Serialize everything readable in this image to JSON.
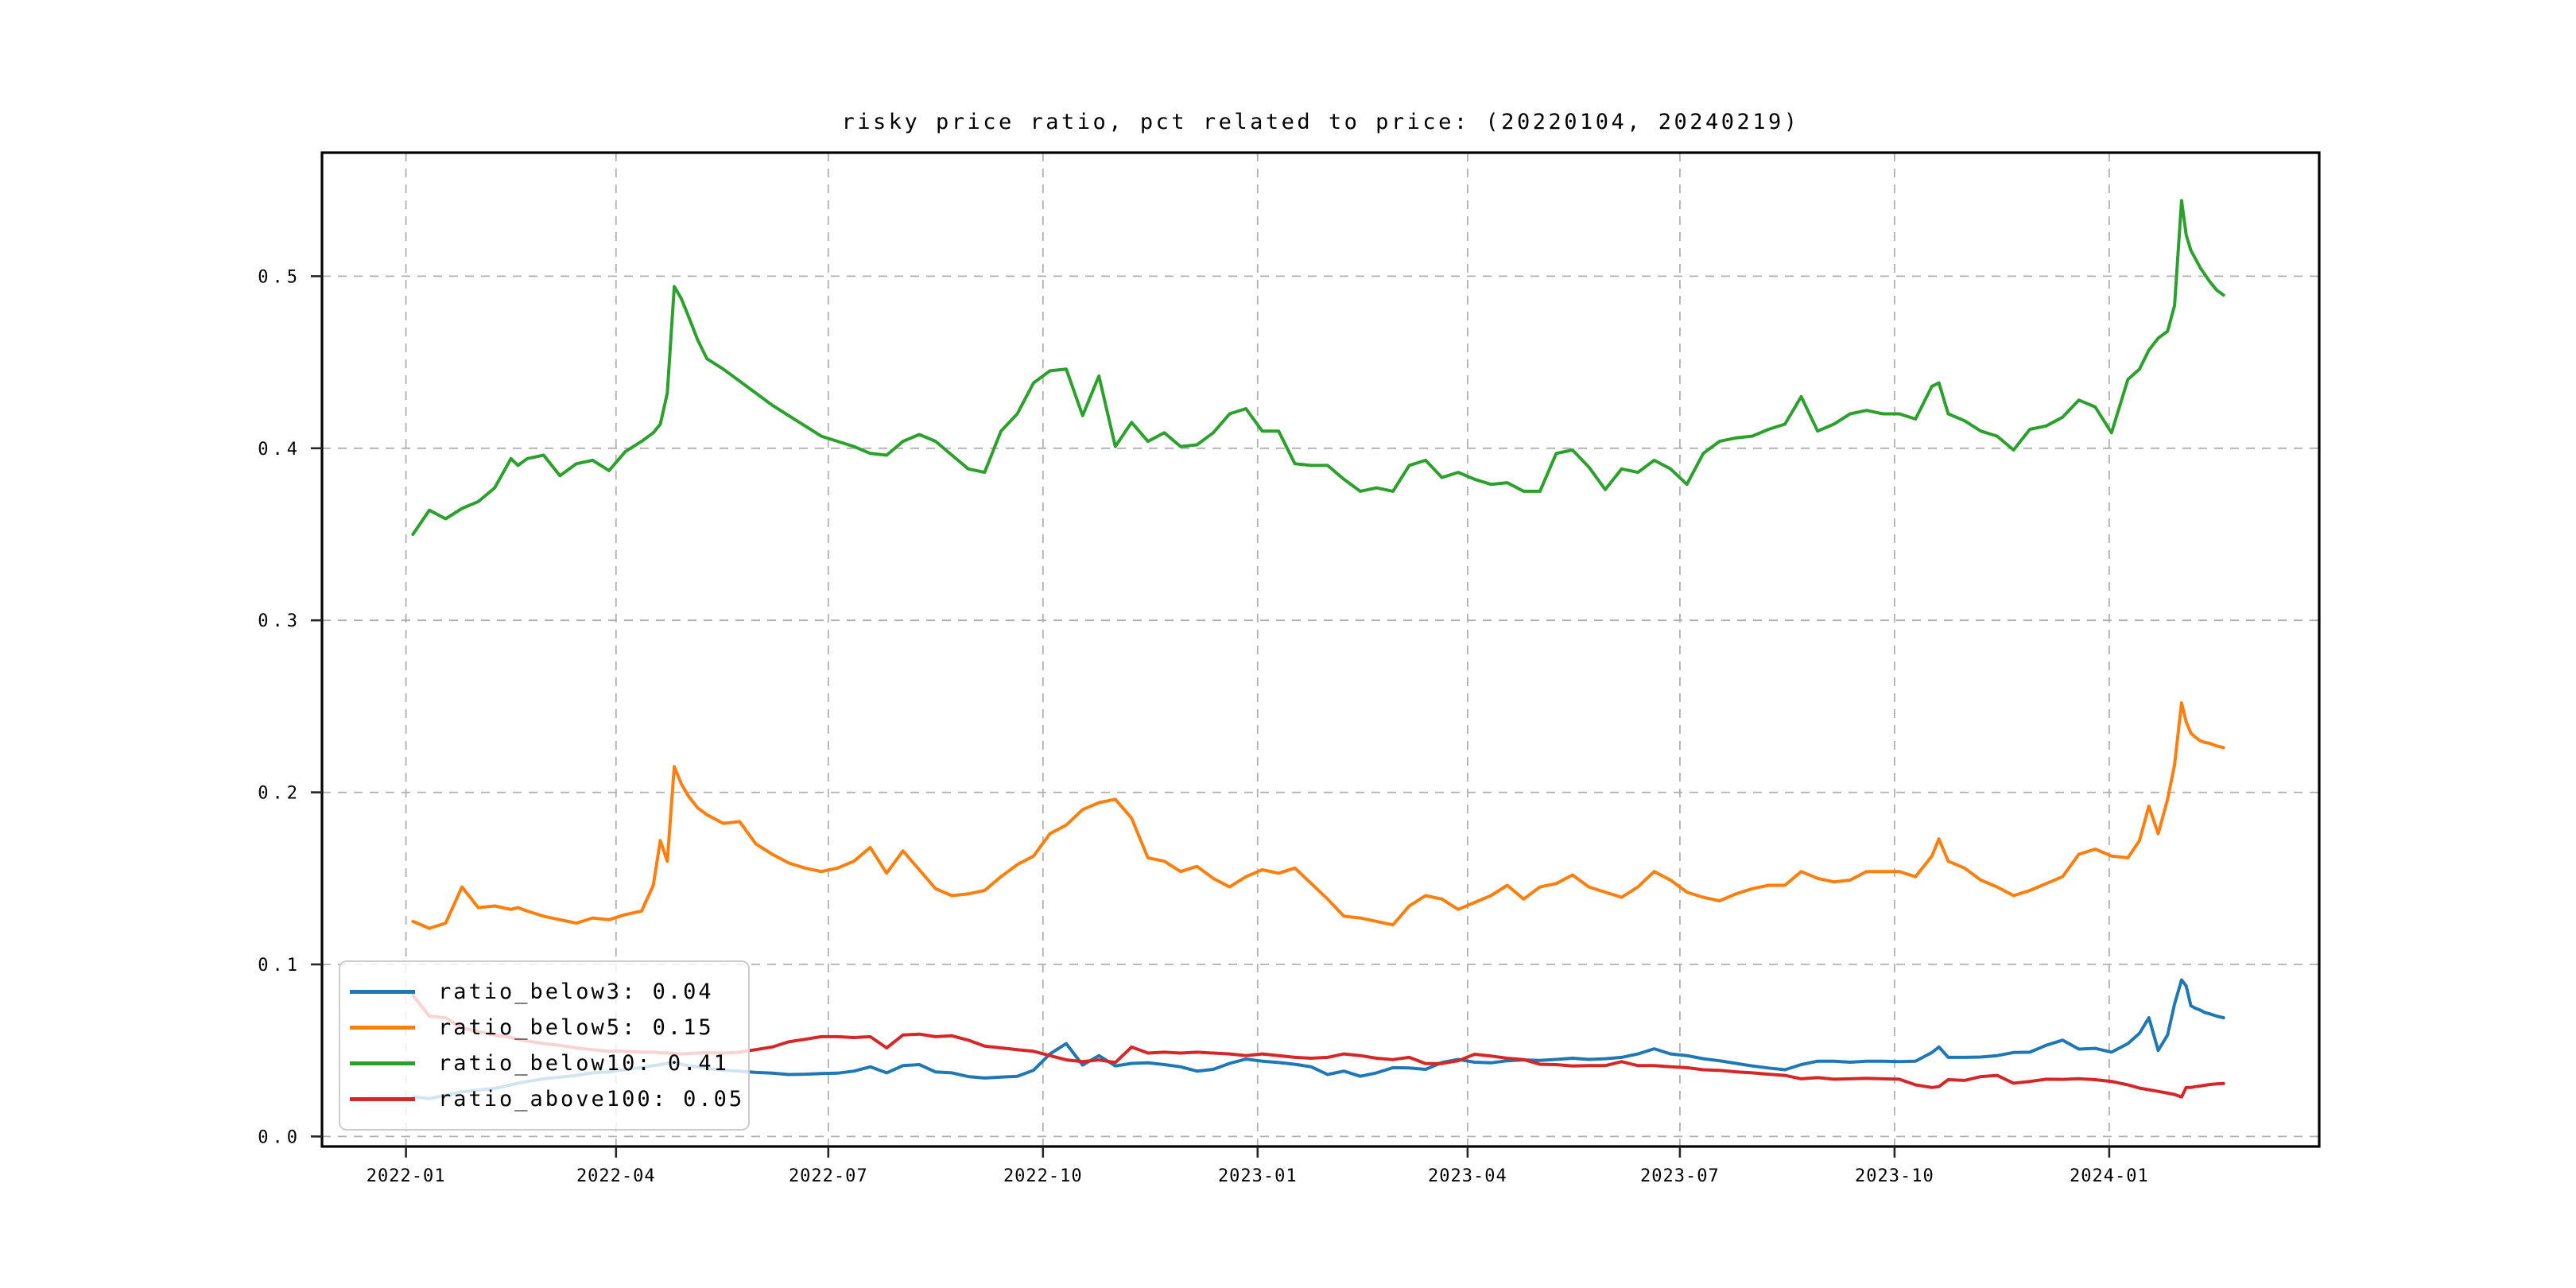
{
  "title": "risky price ratio, pct related to price: (20220104, 20240219)",
  "legend": {
    "position": "lower left",
    "items": [
      {
        "label": "ratio_below3: 0.04"
      },
      {
        "label": "ratio_below5: 0.15"
      },
      {
        "label": "ratio_below10: 0.41"
      },
      {
        "label": "ratio_above100: 0.05"
      }
    ]
  },
  "chart_data": {
    "type": "line",
    "title": "risky price ratio, pct related to price: (20220104, 20240219)",
    "xlabel": "",
    "ylabel": "",
    "start_date": "2022-01-04",
    "end_date": "2024-02-19",
    "grid": {
      "on": true,
      "style": "dashed",
      "color": "#b0b0b0"
    },
    "x_axis": {
      "unit": "days since 2022-01-04",
      "range": [
        -39,
        817
      ],
      "ticks": [
        {
          "label": "2022-01",
          "day": -3
        },
        {
          "label": "2022-04",
          "day": 87
        },
        {
          "label": "2022-07",
          "day": 178
        },
        {
          "label": "2022-10",
          "day": 270
        },
        {
          "label": "2023-01",
          "day": 362
        },
        {
          "label": "2023-04",
          "day": 452
        },
        {
          "label": "2023-07",
          "day": 543
        },
        {
          "label": "2023-10",
          "day": 635
        },
        {
          "label": "2024-01",
          "day": 727
        }
      ]
    },
    "y_axis": {
      "range": [
        -0.0058,
        0.5718
      ],
      "ticks": [
        {
          "label": "0.0",
          "value": 0.0
        },
        {
          "label": "0.1",
          "value": 0.1
        },
        {
          "label": "0.2",
          "value": 0.2
        },
        {
          "label": "0.3",
          "value": 0.3
        },
        {
          "label": "0.4",
          "value": 0.4
        },
        {
          "label": "0.5",
          "value": 0.5
        }
      ]
    },
    "x_days": [
      0,
      7,
      14,
      21,
      28,
      35,
      42,
      45,
      49,
      56,
      63,
      70,
      77,
      84,
      91,
      98,
      103,
      106,
      109,
      112,
      115,
      118,
      122,
      126,
      133,
      140,
      147,
      154,
      161,
      168,
      175,
      182,
      189,
      196,
      203,
      210,
      217,
      224,
      231,
      238,
      245,
      252,
      259,
      266,
      273,
      280,
      287,
      294,
      301,
      308,
      315,
      322,
      329,
      336,
      343,
      350,
      357,
      364,
      371,
      378,
      385,
      392,
      399,
      406,
      413,
      420,
      427,
      434,
      441,
      448,
      455,
      462,
      469,
      476,
      483,
      490,
      497,
      504,
      511,
      518,
      525,
      532,
      539,
      546,
      553,
      560,
      567,
      574,
      581,
      588,
      595,
      602,
      609,
      616,
      623,
      630,
      637,
      644,
      651,
      654,
      658,
      665,
      672,
      679,
      686,
      693,
      700,
      707,
      714,
      721,
      728,
      735,
      740,
      744,
      748,
      752,
      755,
      758,
      760,
      762,
      764,
      766,
      768,
      770,
      773,
      776
    ],
    "series": [
      {
        "name": "ratio_below3",
        "legend_label": "ratio_below3: 0.04",
        "color": "#1f77b4",
        "values": [
          0.023,
          0.022,
          0.024,
          0.026,
          0.027,
          0.028,
          0.03,
          0.031,
          0.032,
          0.0335,
          0.0345,
          0.0355,
          0.037,
          0.0375,
          0.039,
          0.04,
          0.0412,
          0.0418,
          0.0425,
          0.043,
          0.042,
          0.0412,
          0.0405,
          0.0395,
          0.0385,
          0.038,
          0.0372,
          0.0368,
          0.036,
          0.0362,
          0.0366,
          0.0368,
          0.038,
          0.0405,
          0.037,
          0.0412,
          0.0418,
          0.0375,
          0.037,
          0.0348,
          0.034,
          0.0345,
          0.035,
          0.0385,
          0.048,
          0.054,
          0.0415,
          0.047,
          0.041,
          0.0425,
          0.0428,
          0.0418,
          0.0405,
          0.038,
          0.039,
          0.0425,
          0.045,
          0.0438,
          0.043,
          0.042,
          0.0405,
          0.036,
          0.038,
          0.035,
          0.037,
          0.04,
          0.0398,
          0.039,
          0.043,
          0.0448,
          0.0432,
          0.0428,
          0.044,
          0.0445,
          0.0442,
          0.0448,
          0.0455,
          0.0448,
          0.0452,
          0.046,
          0.048,
          0.051,
          0.048,
          0.047,
          0.0452,
          0.044,
          0.0425,
          0.041,
          0.0398,
          0.0388,
          0.0418,
          0.0438,
          0.0438,
          0.0432,
          0.0438,
          0.0438,
          0.0435,
          0.0438,
          0.0488,
          0.052,
          0.046,
          0.046,
          0.0462,
          0.047,
          0.0488,
          0.049,
          0.053,
          0.056,
          0.0508,
          0.0512,
          0.049,
          0.054,
          0.06,
          0.069,
          0.05,
          0.059,
          0.077,
          0.091,
          0.0875,
          0.076,
          0.0745,
          0.0735,
          0.072,
          0.0713,
          0.07,
          0.069
        ]
      },
      {
        "name": "ratio_below5",
        "legend_label": "ratio_below5: 0.15",
        "color": "#ff7f0e",
        "values": [
          0.125,
          0.121,
          0.124,
          0.145,
          0.133,
          0.134,
          0.132,
          0.133,
          0.131,
          0.128,
          0.126,
          0.124,
          0.127,
          0.126,
          0.129,
          0.131,
          0.146,
          0.172,
          0.16,
          0.215,
          0.205,
          0.198,
          0.191,
          0.187,
          0.182,
          0.183,
          0.17,
          0.164,
          0.159,
          0.156,
          0.154,
          0.156,
          0.16,
          0.168,
          0.153,
          0.166,
          0.155,
          0.144,
          0.14,
          0.141,
          0.143,
          0.151,
          0.158,
          0.163,
          0.176,
          0.181,
          0.19,
          0.194,
          0.196,
          0.185,
          0.162,
          0.16,
          0.154,
          0.157,
          0.15,
          0.145,
          0.151,
          0.155,
          0.153,
          0.156,
          0.147,
          0.138,
          0.128,
          0.127,
          0.125,
          0.123,
          0.134,
          0.14,
          0.138,
          0.132,
          0.136,
          0.14,
          0.146,
          0.138,
          0.145,
          0.147,
          0.152,
          0.145,
          0.142,
          0.139,
          0.145,
          0.154,
          0.149,
          0.142,
          0.139,
          0.137,
          0.141,
          0.144,
          0.146,
          0.146,
          0.154,
          0.15,
          0.148,
          0.149,
          0.154,
          0.154,
          0.154,
          0.151,
          0.163,
          0.173,
          0.16,
          0.156,
          0.149,
          0.145,
          0.14,
          0.143,
          0.147,
          0.151,
          0.164,
          0.167,
          0.163,
          0.162,
          0.172,
          0.192,
          0.176,
          0.196,
          0.216,
          0.252,
          0.241,
          0.2345,
          0.232,
          0.23,
          0.229,
          0.2285,
          0.227,
          0.226
        ]
      },
      {
        "name": "ratio_below10",
        "legend_label": "ratio_below10: 0.41",
        "color": "#2ca02c",
        "values": [
          0.35,
          0.364,
          0.359,
          0.365,
          0.369,
          0.377,
          0.394,
          0.39,
          0.394,
          0.396,
          0.384,
          0.391,
          0.393,
          0.387,
          0.398,
          0.404,
          0.409,
          0.414,
          0.432,
          0.494,
          0.487,
          0.477,
          0.463,
          0.452,
          0.446,
          0.439,
          0.432,
          0.425,
          0.419,
          0.413,
          0.407,
          0.404,
          0.401,
          0.397,
          0.396,
          0.404,
          0.408,
          0.404,
          0.396,
          0.388,
          0.386,
          0.41,
          0.42,
          0.438,
          0.445,
          0.446,
          0.419,
          0.442,
          0.401,
          0.415,
          0.404,
          0.409,
          0.401,
          0.402,
          0.409,
          0.42,
          0.423,
          0.41,
          0.41,
          0.391,
          0.39,
          0.39,
          0.382,
          0.375,
          0.377,
          0.375,
          0.39,
          0.393,
          0.383,
          0.386,
          0.382,
          0.379,
          0.38,
          0.375,
          0.375,
          0.397,
          0.399,
          0.389,
          0.376,
          0.388,
          0.386,
          0.393,
          0.388,
          0.379,
          0.397,
          0.404,
          0.406,
          0.407,
          0.411,
          0.414,
          0.43,
          0.41,
          0.414,
          0.42,
          0.422,
          0.42,
          0.42,
          0.417,
          0.436,
          0.438,
          0.42,
          0.416,
          0.41,
          0.407,
          0.399,
          0.411,
          0.413,
          0.418,
          0.428,
          0.424,
          0.409,
          0.44,
          0.446,
          0.457,
          0.464,
          0.468,
          0.483,
          0.544,
          0.524,
          0.515,
          0.51,
          0.505,
          0.501,
          0.497,
          0.492,
          0.489
        ]
      },
      {
        "name": "ratio_above100",
        "legend_label": "ratio_above100: 0.05",
        "color": "#d62728",
        "values": [
          0.082,
          0.07,
          0.069,
          0.063,
          0.061,
          0.059,
          0.0575,
          0.0565,
          0.0555,
          0.054,
          0.053,
          0.0515,
          0.0505,
          0.0495,
          0.0495,
          0.049,
          0.049,
          0.0487,
          0.0485,
          0.0483,
          0.048,
          0.0482,
          0.0485,
          0.0487,
          0.0485,
          0.049,
          0.0505,
          0.052,
          0.055,
          0.0565,
          0.058,
          0.058,
          0.0575,
          0.058,
          0.0515,
          0.059,
          0.0595,
          0.058,
          0.0585,
          0.056,
          0.0525,
          0.0515,
          0.0505,
          0.0495,
          0.047,
          0.0445,
          0.0435,
          0.0445,
          0.043,
          0.052,
          0.0485,
          0.049,
          0.0485,
          0.049,
          0.0485,
          0.048,
          0.047,
          0.048,
          0.047,
          0.046,
          0.0455,
          0.046,
          0.048,
          0.047,
          0.0455,
          0.0447,
          0.046,
          0.0424,
          0.0424,
          0.044,
          0.0478,
          0.0468,
          0.0455,
          0.0447,
          0.042,
          0.0418,
          0.041,
          0.0412,
          0.0412,
          0.0435,
          0.0412,
          0.0412,
          0.0405,
          0.04,
          0.0388,
          0.0384,
          0.0376,
          0.037,
          0.0362,
          0.0355,
          0.0335,
          0.0342,
          0.0333,
          0.0335,
          0.0338,
          0.0335,
          0.0333,
          0.03,
          0.0285,
          0.029,
          0.033,
          0.0326,
          0.0348,
          0.0355,
          0.031,
          0.032,
          0.0333,
          0.0332,
          0.0336,
          0.033,
          0.032,
          0.03,
          0.0281,
          0.0272,
          0.0262,
          0.0252,
          0.0244,
          0.023,
          0.0285,
          0.0285,
          0.029,
          0.0293,
          0.0298,
          0.0302,
          0.0306,
          0.0308
        ]
      }
    ]
  }
}
